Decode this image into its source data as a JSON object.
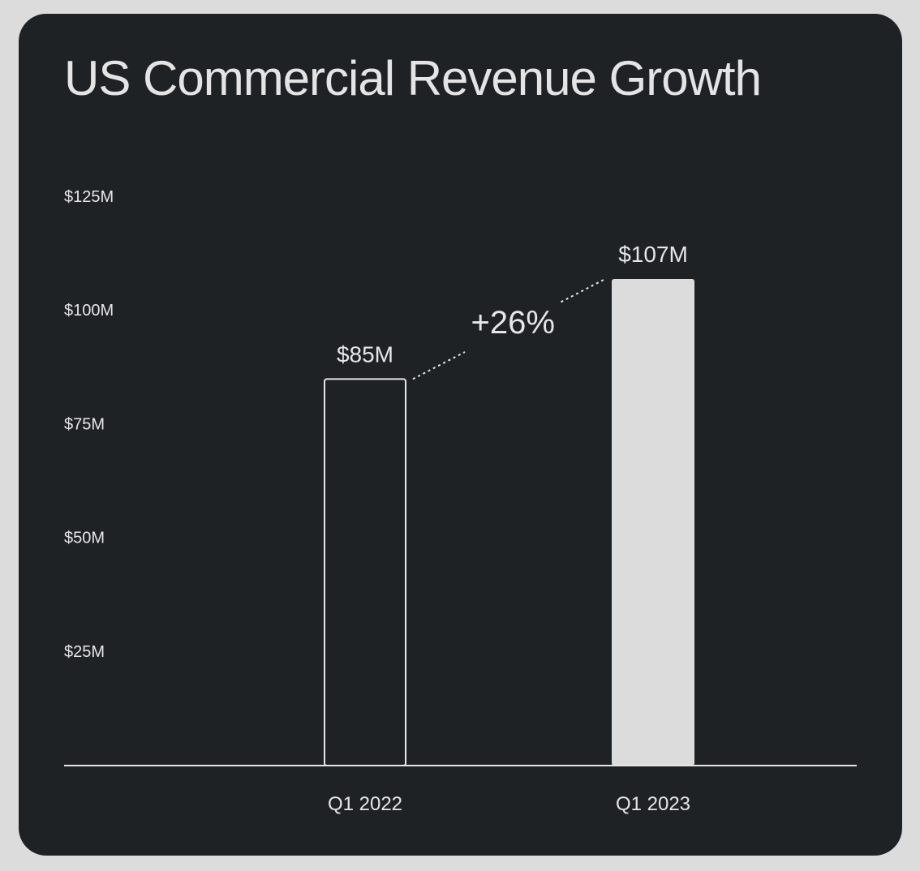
{
  "chart_data": {
    "type": "bar",
    "title": "US Commercial Revenue Growth",
    "categories": [
      "Q1 2022",
      "Q1 2023"
    ],
    "values": [
      85,
      107
    ],
    "data_labels": [
      "$85M",
      "$107M"
    ],
    "unit": "$M",
    "ylim": [
      0,
      125
    ],
    "yticks": [
      {
        "value": 125,
        "label": "$125M"
      },
      {
        "value": 100,
        "label": "$100M"
      },
      {
        "value": 75,
        "label": "$75M"
      },
      {
        "value": 50,
        "label": "$50M"
      },
      {
        "value": 25,
        "label": "$25M"
      }
    ],
    "bar_styles": [
      "outline",
      "filled"
    ],
    "annotation": {
      "text": "+26%",
      "from": "Q1 2022",
      "to": "Q1 2023",
      "style": "dotted-connector"
    },
    "grid": false,
    "legend": "none",
    "colors": {
      "background": "#1f2225",
      "page": "#dcdcdc",
      "bar_fill": "#dcdcdc",
      "bar_outline": "#e6e6e6",
      "text": "#e6e6e6",
      "axis": "#e6e6e6"
    }
  }
}
